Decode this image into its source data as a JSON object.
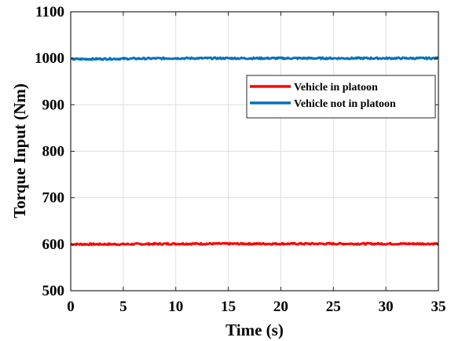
{
  "chart_data": {
    "type": "line",
    "title": "",
    "xlabel": "Time (s)",
    "ylabel": "Torque Input (Nm)",
    "xlim": [
      0,
      35
    ],
    "ylim": [
      500,
      1100
    ],
    "xticks": [
      "0",
      "5",
      "10",
      "15",
      "20",
      "25",
      "30",
      "35"
    ],
    "yticks": [
      "500",
      "600",
      "700",
      "800",
      "900",
      "1000",
      "1100"
    ],
    "grid": true,
    "legend_position": "top-right",
    "series": [
      {
        "name": "Vehicle in platoon",
        "color": "#ff0000",
        "x": [
          0,
          5,
          10,
          15,
          20,
          25,
          30,
          35
        ],
        "y": [
          600,
          600,
          601,
          601,
          601,
          601,
          601,
          601
        ]
      },
      {
        "name": "Vehicle not in platoon",
        "color": "#0072bd",
        "x": [
          0,
          5,
          10,
          15,
          20,
          25,
          30,
          35
        ],
        "y": [
          998,
          999,
          1000,
          1000,
          1000,
          1000,
          1000,
          1000
        ]
      }
    ]
  }
}
